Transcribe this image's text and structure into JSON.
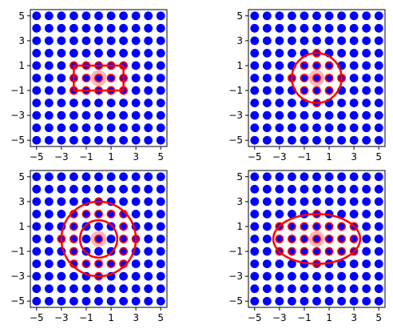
{
  "colors": {
    "point": "#0000ff",
    "selected_edge": "#ff0000",
    "center": "#ffaaaa",
    "shape": "#ff0000",
    "axes": "#000000",
    "background": "#ffffff"
  },
  "chart_data": [
    {
      "type": "scatter",
      "grid_x": [
        -5,
        -4,
        -3,
        -2,
        -1,
        0,
        1,
        2,
        3,
        4,
        5
      ],
      "grid_y": [
        -5,
        -4,
        -3,
        -2,
        -1,
        0,
        1,
        2,
        3,
        4,
        5
      ],
      "center": [
        0,
        0
      ],
      "shape": {
        "kind": "rectangle",
        "x": [
          -2,
          2
        ],
        "y": [
          -1,
          1
        ]
      },
      "xlim": [
        -5.5,
        5.5
      ],
      "ylim": [
        -5.5,
        5.5
      ],
      "xticks": [
        "−5",
        "−3",
        "−1",
        "1",
        "3",
        "5"
      ],
      "yticks": [
        "−5",
        "−3",
        "−1",
        "1",
        "3",
        "5"
      ],
      "grid": false
    },
    {
      "type": "scatter",
      "grid_x": [
        -5,
        -4,
        -3,
        -2,
        -1,
        0,
        1,
        2,
        3,
        4,
        5
      ],
      "grid_y": [
        -5,
        -4,
        -3,
        -2,
        -1,
        0,
        1,
        2,
        3,
        4,
        5
      ],
      "center": [
        0,
        0
      ],
      "shape": {
        "kind": "circle",
        "r": 2
      },
      "xlim": [
        -5.5,
        5.5
      ],
      "ylim": [
        -5.5,
        5.5
      ],
      "xticks": [
        "−5",
        "−3",
        "−1",
        "1",
        "3",
        "5"
      ],
      "yticks": [
        "−5",
        "−3",
        "−1",
        "1",
        "3",
        "5"
      ],
      "grid": false
    },
    {
      "type": "scatter",
      "grid_x": [
        -5,
        -4,
        -3,
        -2,
        -1,
        0,
        1,
        2,
        3,
        4,
        5
      ],
      "grid_y": [
        -5,
        -4,
        -3,
        -2,
        -1,
        0,
        1,
        2,
        3,
        4,
        5
      ],
      "center": [
        0,
        0
      ],
      "shape": {
        "kind": "annulus",
        "r_inner": 1.5,
        "r_outer": 3
      },
      "xlim": [
        -5.5,
        5.5
      ],
      "ylim": [
        -5.5,
        5.5
      ],
      "xticks": [
        "−5",
        "−3",
        "−1",
        "1",
        "3",
        "5"
      ],
      "yticks": [
        "−5",
        "−3",
        "−1",
        "1",
        "3",
        "5"
      ],
      "grid": false
    },
    {
      "type": "scatter",
      "grid_x": [
        -5,
        -4,
        -3,
        -2,
        -1,
        0,
        1,
        2,
        3,
        4,
        5
      ],
      "grid_y": [
        -5,
        -4,
        -3,
        -2,
        -1,
        0,
        1,
        2,
        3,
        4,
        5
      ],
      "center": [
        0,
        0
      ],
      "shape": {
        "kind": "ellipse",
        "rx": 3.5,
        "ry": 2
      },
      "xlim": [
        -5.5,
        5.5
      ],
      "ylim": [
        -5.5,
        5.5
      ],
      "xticks": [
        "−5",
        "−3",
        "−1",
        "1",
        "3",
        "5"
      ],
      "yticks": [
        "−5",
        "−3",
        "−1",
        "1",
        "3",
        "5"
      ],
      "grid": false
    }
  ]
}
